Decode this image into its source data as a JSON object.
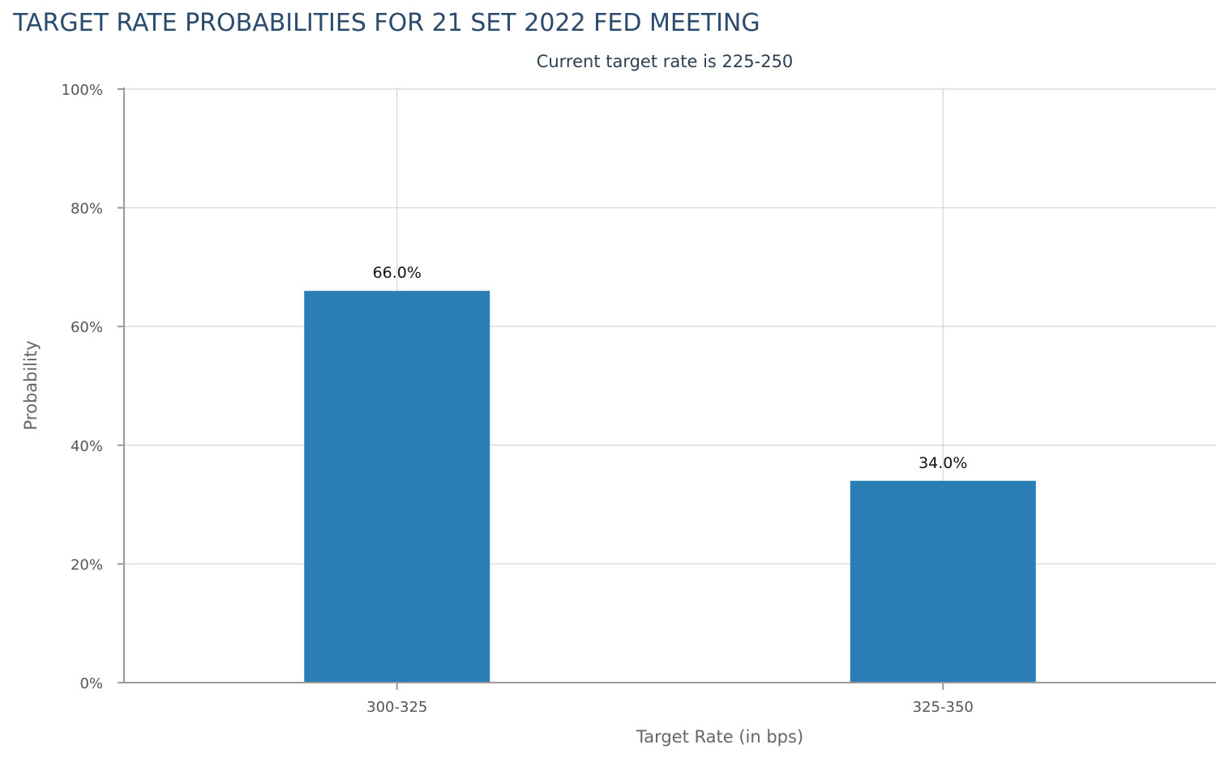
{
  "chart_data": {
    "type": "bar",
    "title": "TARGET RATE PROBABILITIES FOR 21 SET 2022 FED MEETING",
    "subtitle": "Current target rate is 225-250",
    "categories": [
      "300-325",
      "325-350"
    ],
    "values": [
      66.0,
      34.0
    ],
    "data_labels": [
      "66.0%",
      "34.0%"
    ],
    "xlabel": "Target Rate (in bps)",
    "ylabel": "Probability",
    "ylim": [
      0,
      100
    ],
    "yticks": [
      0,
      20,
      40,
      60,
      80,
      100
    ],
    "ytick_labels": [
      "0%",
      "20%",
      "40%",
      "60%",
      "80%",
      "100%"
    ],
    "grid": true,
    "bar_color": "#2a7db5"
  }
}
